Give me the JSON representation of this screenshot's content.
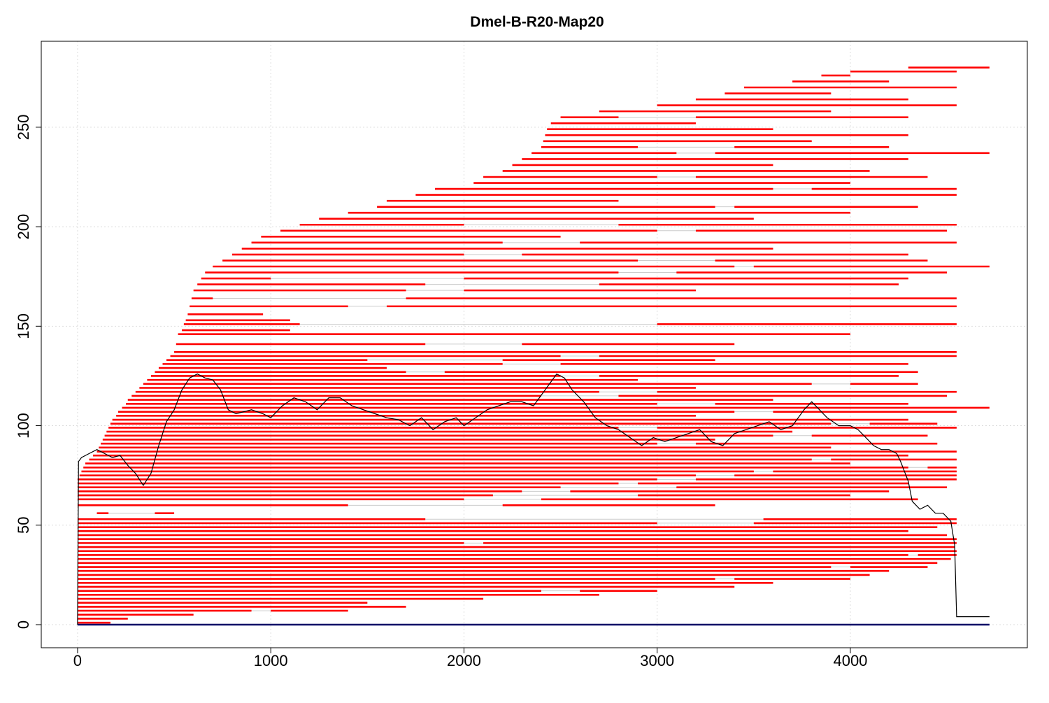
{
  "chart_data": {
    "type": "segments",
    "title": "Dmel-B-R20-Map20",
    "xlim": [
      -188,
      4916
    ],
    "ylim": [
      -11.6,
      293.2
    ],
    "xticks": [
      0,
      1000,
      2000,
      3000,
      4000
    ],
    "yticks": [
      0,
      50,
      100,
      150,
      200,
      250
    ],
    "grid": true,
    "segment_color": "#ff0000",
    "coverage_color": "#000000",
    "baseline": {
      "color": "#000066",
      "segment": [
        0,
        0,
        4720
      ]
    },
    "segments": [
      [
        1,
        0,
        170
      ],
      [
        3,
        0,
        260
      ],
      [
        5,
        0,
        600
      ],
      [
        7,
        0,
        900
      ],
      [
        7,
        1000,
        1400
      ],
      [
        9,
        0,
        1700
      ],
      [
        11,
        0,
        1500
      ],
      [
        13,
        0,
        2100
      ],
      [
        15,
        0,
        2700
      ],
      [
        17,
        0,
        2400
      ],
      [
        17,
        2600,
        3000
      ],
      [
        19,
        0,
        3400
      ],
      [
        21,
        0,
        3600
      ],
      [
        23,
        0,
        3300
      ],
      [
        23,
        3400,
        4000
      ],
      [
        25,
        0,
        4100
      ],
      [
        27,
        0,
        4200
      ],
      [
        29,
        0,
        3900
      ],
      [
        29,
        4000,
        4400
      ],
      [
        31,
        0,
        4450
      ],
      [
        33,
        0,
        4520
      ],
      [
        35,
        0,
        4300
      ],
      [
        35,
        4350,
        4550
      ],
      [
        37,
        0,
        4550
      ],
      [
        39,
        0,
        4540
      ],
      [
        41,
        0,
        2000
      ],
      [
        41,
        2100,
        4550
      ],
      [
        43,
        0,
        4550
      ],
      [
        45,
        0,
        4500
      ],
      [
        47,
        0,
        4300
      ],
      [
        49,
        0,
        4450
      ],
      [
        51,
        0,
        3000
      ],
      [
        51,
        3500,
        4550
      ],
      [
        53,
        0,
        1800
      ],
      [
        53,
        3550,
        4550
      ],
      [
        56,
        100,
        160
      ],
      [
        56,
        400,
        500
      ],
      [
        60,
        0,
        1400
      ],
      [
        60,
        2200,
        3300
      ],
      [
        63,
        0,
        2000
      ],
      [
        63,
        2400,
        4350
      ],
      [
        65,
        0,
        2150
      ],
      [
        65,
        2900,
        4000
      ],
      [
        67,
        0,
        2300
      ],
      [
        67,
        2550,
        4200
      ],
      [
        69,
        0,
        2500
      ],
      [
        69,
        3100,
        4500
      ],
      [
        71,
        0,
        2800
      ],
      [
        71,
        2900,
        4300
      ],
      [
        73,
        0,
        3000
      ],
      [
        73,
        3200,
        4550
      ],
      [
        75,
        10,
        3200
      ],
      [
        75,
        3400,
        4550
      ],
      [
        77,
        20,
        3500
      ],
      [
        77,
        3600,
        4550
      ],
      [
        79,
        30,
        4300
      ],
      [
        79,
        4400,
        4550
      ],
      [
        81,
        40,
        4000
      ],
      [
        83,
        60,
        3800
      ],
      [
        83,
        3900,
        4550
      ],
      [
        85,
        80,
        4300
      ],
      [
        87,
        100,
        4550
      ],
      [
        89,
        110,
        3900
      ],
      [
        91,
        120,
        3000
      ],
      [
        91,
        3200,
        4450
      ],
      [
        93,
        130,
        3300
      ],
      [
        95,
        140,
        3600
      ],
      [
        95,
        3800,
        4400
      ],
      [
        97,
        150,
        3700
      ],
      [
        99,
        160,
        2800
      ],
      [
        99,
        3000,
        4550
      ],
      [
        101,
        170,
        3900
      ],
      [
        101,
        4100,
        4450
      ],
      [
        103,
        180,
        4300
      ],
      [
        105,
        200,
        3200
      ],
      [
        107,
        210,
        3400
      ],
      [
        107,
        3600,
        4550
      ],
      [
        109,
        230,
        4720
      ],
      [
        111,
        250,
        3000
      ],
      [
        111,
        3300,
        4300
      ],
      [
        113,
        260,
        3600
      ],
      [
        115,
        280,
        2400
      ],
      [
        115,
        2800,
        4500
      ],
      [
        117,
        300,
        2700
      ],
      [
        117,
        3000,
        4550
      ],
      [
        119,
        320,
        3200
      ],
      [
        121,
        340,
        3800
      ],
      [
        121,
        4000,
        4350
      ],
      [
        123,
        360,
        2900
      ],
      [
        125,
        380,
        2500
      ],
      [
        125,
        2700,
        4250
      ],
      [
        127,
        400,
        1700
      ],
      [
        127,
        1900,
        4350
      ],
      [
        129,
        420,
        1600
      ],
      [
        131,
        440,
        2200
      ],
      [
        131,
        2500,
        4300
      ],
      [
        133,
        460,
        1500
      ],
      [
        133,
        2200,
        3300
      ],
      [
        135,
        480,
        2500
      ],
      [
        135,
        2700,
        4550
      ],
      [
        137,
        500,
        4550
      ],
      [
        141,
        510,
        1800
      ],
      [
        141,
        2300,
        3400
      ],
      [
        146,
        520,
        4000
      ],
      [
        148,
        540,
        1100
      ],
      [
        151,
        550,
        1150
      ],
      [
        151,
        3000,
        4550
      ],
      [
        153,
        560,
        1100
      ],
      [
        156,
        570,
        960
      ],
      [
        160,
        580,
        1400
      ],
      [
        160,
        1600,
        4550
      ],
      [
        164,
        590,
        700
      ],
      [
        164,
        1700,
        4550
      ],
      [
        168,
        600,
        1700
      ],
      [
        168,
        2000,
        3200
      ],
      [
        171,
        620,
        1800
      ],
      [
        171,
        2700,
        4250
      ],
      [
        174,
        640,
        1000
      ],
      [
        174,
        2000,
        4300
      ],
      [
        177,
        660,
        2800
      ],
      [
        177,
        3100,
        4500
      ],
      [
        180,
        700,
        3400
      ],
      [
        180,
        3500,
        4720
      ],
      [
        183,
        750,
        2900
      ],
      [
        183,
        3300,
        4400
      ],
      [
        186,
        800,
        2000
      ],
      [
        186,
        2300,
        4300
      ],
      [
        189,
        850,
        3600
      ],
      [
        192,
        900,
        2200
      ],
      [
        192,
        2600,
        4550
      ],
      [
        195,
        950,
        2500
      ],
      [
        198,
        1050,
        3000
      ],
      [
        198,
        3200,
        4500
      ],
      [
        201,
        1150,
        2000
      ],
      [
        201,
        2800,
        4550
      ],
      [
        204,
        1250,
        3500
      ],
      [
        207,
        1400,
        4000
      ],
      [
        210,
        1550,
        3300
      ],
      [
        210,
        3400,
        4350
      ],
      [
        213,
        1600,
        2800
      ],
      [
        216,
        1750,
        4550
      ],
      [
        219,
        1850,
        3600
      ],
      [
        219,
        3800,
        4550
      ],
      [
        222,
        2050,
        4000
      ],
      [
        225,
        2100,
        3000
      ],
      [
        225,
        3200,
        4400
      ],
      [
        228,
        2200,
        4100
      ],
      [
        231,
        2250,
        3600
      ],
      [
        234,
        2300,
        4300
      ],
      [
        237,
        2350,
        3100
      ],
      [
        237,
        3300,
        4720
      ],
      [
        240,
        2400,
        2900
      ],
      [
        240,
        3400,
        4200
      ],
      [
        243,
        2410,
        3800
      ],
      [
        246,
        2420,
        4300
      ],
      [
        249,
        2430,
        3600
      ],
      [
        252,
        2450,
        3200
      ],
      [
        255,
        2500,
        2800
      ],
      [
        255,
        3200,
        4300
      ],
      [
        258,
        2700,
        3900
      ],
      [
        261,
        3000,
        4550
      ],
      [
        264,
        3200,
        4300
      ],
      [
        267,
        3350,
        3900
      ],
      [
        270,
        3450,
        4550
      ],
      [
        273,
        3700,
        4200
      ],
      [
        276,
        3850,
        4000
      ],
      [
        278,
        4000,
        4550
      ],
      [
        280,
        4300,
        4720
      ]
    ],
    "coverage": [
      [
        0,
        0
      ],
      [
        5,
        82
      ],
      [
        20,
        84
      ],
      [
        60,
        86
      ],
      [
        100,
        88
      ],
      [
        140,
        86
      ],
      [
        180,
        84
      ],
      [
        220,
        85
      ],
      [
        260,
        80
      ],
      [
        300,
        76
      ],
      [
        340,
        70
      ],
      [
        380,
        76
      ],
      [
        420,
        90
      ],
      [
        460,
        102
      ],
      [
        500,
        108
      ],
      [
        540,
        118
      ],
      [
        580,
        124
      ],
      [
        620,
        126
      ],
      [
        660,
        124
      ],
      [
        700,
        123
      ],
      [
        740,
        118
      ],
      [
        780,
        108
      ],
      [
        820,
        106
      ],
      [
        900,
        108
      ],
      [
        960,
        106
      ],
      [
        1000,
        104
      ],
      [
        1060,
        110
      ],
      [
        1120,
        114
      ],
      [
        1180,
        112
      ],
      [
        1240,
        108
      ],
      [
        1300,
        114
      ],
      [
        1360,
        114
      ],
      [
        1420,
        110
      ],
      [
        1480,
        108
      ],
      [
        1540,
        106
      ],
      [
        1600,
        104
      ],
      [
        1660,
        103
      ],
      [
        1720,
        100
      ],
      [
        1780,
        104
      ],
      [
        1840,
        98
      ],
      [
        1900,
        102
      ],
      [
        1960,
        104
      ],
      [
        2000,
        100
      ],
      [
        2060,
        104
      ],
      [
        2120,
        108
      ],
      [
        2180,
        110
      ],
      [
        2240,
        112
      ],
      [
        2300,
        112
      ],
      [
        2360,
        110
      ],
      [
        2420,
        118
      ],
      [
        2480,
        126
      ],
      [
        2520,
        124
      ],
      [
        2560,
        118
      ],
      [
        2620,
        112
      ],
      [
        2680,
        104
      ],
      [
        2740,
        100
      ],
      [
        2800,
        98
      ],
      [
        2860,
        94
      ],
      [
        2920,
        90
      ],
      [
        2980,
        94
      ],
      [
        3040,
        92
      ],
      [
        3100,
        94
      ],
      [
        3160,
        96
      ],
      [
        3220,
        98
      ],
      [
        3280,
        92
      ],
      [
        3340,
        90
      ],
      [
        3400,
        96
      ],
      [
        3460,
        98
      ],
      [
        3520,
        100
      ],
      [
        3580,
        102
      ],
      [
        3640,
        98
      ],
      [
        3700,
        100
      ],
      [
        3760,
        108
      ],
      [
        3800,
        112
      ],
      [
        3840,
        108
      ],
      [
        3880,
        104
      ],
      [
        3940,
        100
      ],
      [
        4000,
        100
      ],
      [
        4040,
        98
      ],
      [
        4080,
        94
      ],
      [
        4120,
        90
      ],
      [
        4160,
        88
      ],
      [
        4200,
        88
      ],
      [
        4240,
        86
      ],
      [
        4260,
        82
      ],
      [
        4300,
        72
      ],
      [
        4320,
        62
      ],
      [
        4360,
        58
      ],
      [
        4400,
        60
      ],
      [
        4440,
        56
      ],
      [
        4480,
        56
      ],
      [
        4520,
        52
      ],
      [
        4540,
        40
      ],
      [
        4550,
        4
      ],
      [
        4720,
        4
      ]
    ]
  }
}
